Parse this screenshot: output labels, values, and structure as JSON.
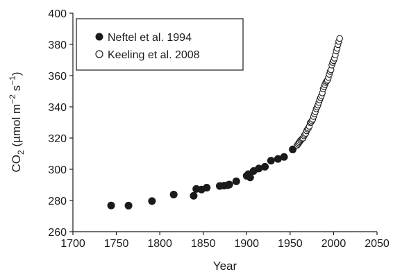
{
  "chart_data": {
    "type": "scatter",
    "xlabel": "Year",
    "ylabel": {
      "base": "CO",
      "base_sub": "2",
      "rest": " (µmol m",
      "sup1": "−2",
      "mid": " s",
      "sup2": "−1",
      "end": ")"
    },
    "xlim": [
      1700,
      2050
    ],
    "ylim": [
      260,
      400
    ],
    "xticks": [
      1700,
      1750,
      1800,
      1850,
      1900,
      1950,
      2000,
      2050
    ],
    "yticks": [
      260,
      280,
      300,
      320,
      340,
      360,
      380,
      400
    ],
    "grid": false,
    "legend_position": "top-left",
    "series": [
      {
        "name": "Neftel et al. 1994",
        "marker": "filled-circle",
        "color": "#1a1a1a",
        "x": [
          1744,
          1764,
          1791,
          1816,
          1839,
          1842,
          1848,
          1854,
          1869,
          1874,
          1878,
          1880,
          1888,
          1900,
          1902,
          1904,
          1908,
          1914,
          1921,
          1928,
          1936,
          1943,
          1953
        ],
        "y": [
          276.8,
          276.7,
          279.6,
          283.8,
          283.0,
          287.4,
          287.0,
          288.2,
          289.3,
          289.5,
          289.8,
          290.2,
          292.3,
          295.8,
          296.9,
          294.8,
          298.9,
          300.5,
          301.6,
          305.5,
          306.6,
          307.9,
          312.7
        ]
      },
      {
        "name": "Keeling et al. 2008",
        "marker": "open-circle",
        "color": "#1a1a1a",
        "x": [
          1958,
          1959,
          1960,
          1961,
          1962,
          1963,
          1964,
          1965,
          1966,
          1967,
          1968,
          1969,
          1970,
          1971,
          1972,
          1973,
          1974,
          1975,
          1976,
          1977,
          1978,
          1979,
          1980,
          1981,
          1982,
          1983,
          1984,
          1985,
          1986,
          1987,
          1988,
          1989,
          1990,
          1991,
          1992,
          1993,
          1994,
          1995,
          1996,
          1997,
          1998,
          1999,
          2000,
          2001,
          2002,
          2003,
          2004,
          2005,
          2006,
          2007
        ],
        "y": [
          315.3,
          316.0,
          316.9,
          317.6,
          318.5,
          319.0,
          319.6,
          320.0,
          321.4,
          322.2,
          323.0,
          324.6,
          325.7,
          326.3,
          327.5,
          329.7,
          330.2,
          331.1,
          332.0,
          333.8,
          335.4,
          336.8,
          338.7,
          339.9,
          341.1,
          342.8,
          344.4,
          345.9,
          347.2,
          348.9,
          351.5,
          352.9,
          354.2,
          355.6,
          356.4,
          357.1,
          358.8,
          360.8,
          362.6,
          363.7,
          366.7,
          368.4,
          369.6,
          371.1,
          373.2,
          375.8,
          377.5,
          379.8,
          381.9,
          383.8
        ]
      }
    ]
  }
}
